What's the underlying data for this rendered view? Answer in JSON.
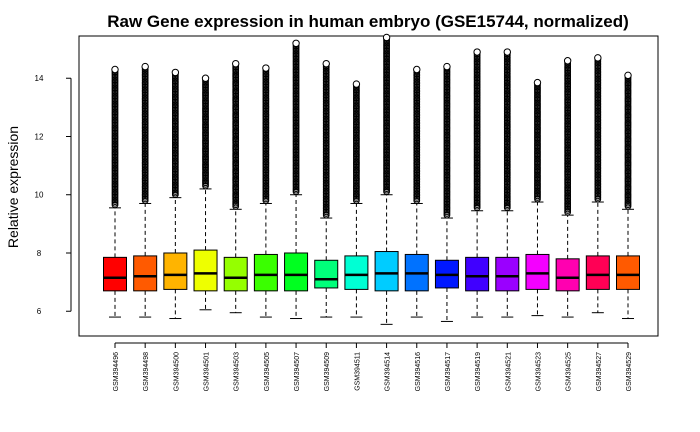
{
  "chart_data": {
    "type": "boxplot",
    "title": "Raw Gene expression in human embryo (GSE15744, normalized)",
    "ylabel": "Relative expression",
    "xlabel": "",
    "ylim": [
      5.15,
      15.45
    ],
    "yticks": [
      6,
      8,
      10,
      12,
      14
    ],
    "categories": [
      "GSM394496",
      "GSM394498",
      "GSM394500",
      "GSM394501",
      "GSM394503",
      "GSM394505",
      "GSM394507",
      "GSM394509",
      "GSM394511",
      "GSM394514",
      "GSM394516",
      "GSM394517",
      "GSM394519",
      "GSM394521",
      "GSM394523",
      "GSM394525",
      "GSM394527",
      "GSM394529"
    ],
    "colors": [
      "#ff0000",
      "#ff5a00",
      "#ffb400",
      "#eeff00",
      "#95ff00",
      "#3aff00",
      "#00ff20",
      "#00ff7a",
      "#00ffd4",
      "#00ccff",
      "#0072ff",
      "#0018ff",
      "#4000ff",
      "#9a00ff",
      "#f400ff",
      "#ff00b0",
      "#ff0055",
      "#ff0000"
    ],
    "fill_colors": [
      "#ff0000",
      "#ff5a00",
      "#ffb400",
      "#eeff00",
      "#95ff00",
      "#3aff00",
      "#00ff20",
      "#00ff7a",
      "#00ffd4",
      "#00ccff",
      "#0072ff",
      "#0018ff",
      "#4000ff",
      "#9a00ff",
      "#f400ff",
      "#ff00b0",
      "#ff0055",
      "#ff5a00"
    ],
    "boxes": [
      {
        "q1": 6.7,
        "median": 7.15,
        "q3": 7.85,
        "whisker_low": 5.8,
        "whisker_high": 9.55,
        "outlier_max": 14.3
      },
      {
        "q1": 6.7,
        "median": 7.2,
        "q3": 7.9,
        "whisker_low": 5.8,
        "whisker_high": 9.7,
        "outlier_max": 14.4
      },
      {
        "q1": 6.75,
        "median": 7.25,
        "q3": 8.0,
        "whisker_low": 5.75,
        "whisker_high": 9.9,
        "outlier_max": 14.2
      },
      {
        "q1": 6.7,
        "median": 7.3,
        "q3": 8.1,
        "whisker_low": 6.05,
        "whisker_high": 10.2,
        "outlier_max": 14.0
      },
      {
        "q1": 6.7,
        "median": 7.15,
        "q3": 7.85,
        "whisker_low": 5.95,
        "whisker_high": 9.5,
        "outlier_max": 14.5
      },
      {
        "q1": 6.7,
        "median": 7.25,
        "q3": 7.95,
        "whisker_low": 5.8,
        "whisker_high": 9.7,
        "outlier_max": 14.35
      },
      {
        "q1": 6.7,
        "median": 7.25,
        "q3": 8.0,
        "whisker_low": 5.75,
        "whisker_high": 10.0,
        "outlier_max": 15.2
      },
      {
        "q1": 6.8,
        "median": 7.1,
        "q3": 7.75,
        "whisker_low": 5.8,
        "whisker_high": 9.2,
        "outlier_max": 14.5
      },
      {
        "q1": 6.75,
        "median": 7.25,
        "q3": 7.9,
        "whisker_low": 5.8,
        "whisker_high": 9.7,
        "outlier_max": 13.8
      },
      {
        "q1": 6.7,
        "median": 7.3,
        "q3": 8.05,
        "whisker_low": 5.55,
        "whisker_high": 10.0,
        "outlier_max": 15.4
      },
      {
        "q1": 6.7,
        "median": 7.3,
        "q3": 7.95,
        "whisker_low": 5.8,
        "whisker_high": 9.7,
        "outlier_max": 14.3
      },
      {
        "q1": 6.8,
        "median": 7.25,
        "q3": 7.75,
        "whisker_low": 5.65,
        "whisker_high": 9.2,
        "outlier_max": 14.4
      },
      {
        "q1": 6.7,
        "median": 7.2,
        "q3": 7.85,
        "whisker_low": 5.8,
        "whisker_high": 9.45,
        "outlier_max": 14.9
      },
      {
        "q1": 6.7,
        "median": 7.2,
        "q3": 7.85,
        "whisker_low": 5.8,
        "whisker_high": 9.45,
        "outlier_max": 14.9
      },
      {
        "q1": 6.75,
        "median": 7.3,
        "q3": 7.95,
        "whisker_low": 5.85,
        "whisker_high": 9.75,
        "outlier_max": 13.85
      },
      {
        "q1": 6.7,
        "median": 7.15,
        "q3": 7.8,
        "whisker_low": 5.8,
        "whisker_high": 9.3,
        "outlier_max": 14.6
      },
      {
        "q1": 6.75,
        "median": 7.25,
        "q3": 7.9,
        "whisker_low": 5.95,
        "whisker_high": 9.75,
        "outlier_max": 14.7
      },
      {
        "q1": 6.75,
        "median": 7.25,
        "q3": 7.9,
        "whisker_low": 5.75,
        "whisker_high": 9.5,
        "outlier_max": 14.1
      }
    ],
    "grid": false,
    "legend": "none"
  }
}
